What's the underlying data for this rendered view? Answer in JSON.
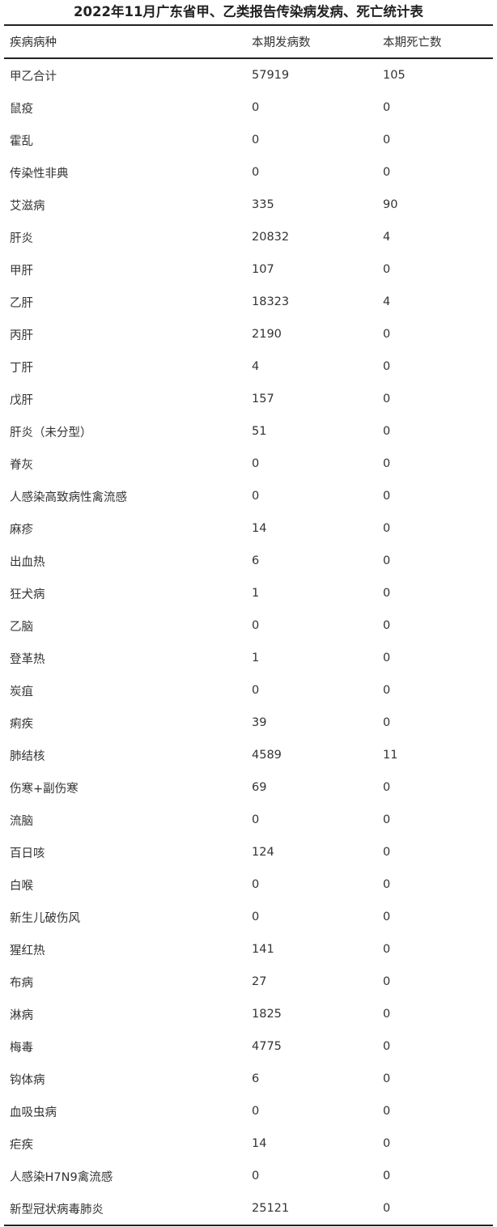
{
  "title": "2022年11月广东省甲、乙类报告传染病发病、死亡统计表",
  "headers": [
    "疾病病种",
    "本期发病数",
    "本期死亡数"
  ],
  "rows": [
    [
      "甲乙合计",
      "57919",
      "105"
    ],
    [
      "鼠疫",
      "0",
      "0"
    ],
    [
      "霍乱",
      "0",
      "0"
    ],
    [
      "传染性非典",
      "0",
      "0"
    ],
    [
      "艾滋病",
      "335",
      "90"
    ],
    [
      "肝炎",
      "20832",
      "4"
    ],
    [
      "甲肝",
      "107",
      "0"
    ],
    [
      "乙肝",
      "18323",
      "4"
    ],
    [
      "丙肝",
      "2190",
      "0"
    ],
    [
      "丁肝",
      "4",
      "0"
    ],
    [
      "戊肝",
      "157",
      "0"
    ],
    [
      "肝炎（未分型）",
      "51",
      "0"
    ],
    [
      "脊灰",
      "0",
      "0"
    ],
    [
      "人感染高致病性禽流感",
      "0",
      "0"
    ],
    [
      "麻疹",
      "14",
      "0"
    ],
    [
      "出血热",
      "6",
      "0"
    ],
    [
      "狂犬病",
      "1",
      "0"
    ],
    [
      "乙脑",
      "0",
      "0"
    ],
    [
      "登革热",
      "1",
      "0"
    ],
    [
      "炭疽",
      "0",
      "0"
    ],
    [
      "痢疾",
      "39",
      "0"
    ],
    [
      "肺结核",
      "4589",
      "11"
    ],
    [
      "伤寒+副伤寒",
      "69",
      "0"
    ],
    [
      "流脑",
      "0",
      "0"
    ],
    [
      "百日咳",
      "124",
      "0"
    ],
    [
      "白喉",
      "0",
      "0"
    ],
    [
      "新生儿破伤风",
      "0",
      "0"
    ],
    [
      "猩红热",
      "141",
      "0"
    ],
    [
      "布病",
      "27",
      "0"
    ],
    [
      "淋病",
      "1825",
      "0"
    ],
    [
      "梅毒",
      "4775",
      "0"
    ],
    [
      "钩体病",
      "6",
      "0"
    ],
    [
      "血吸虫病",
      "0",
      "0"
    ],
    [
      "疟疾",
      "14",
      "0"
    ],
    [
      "人感染H7N9禽流感",
      "0",
      "0"
    ],
    [
      "新型冠状病毒肺炎",
      "25121",
      "0"
    ]
  ]
}
